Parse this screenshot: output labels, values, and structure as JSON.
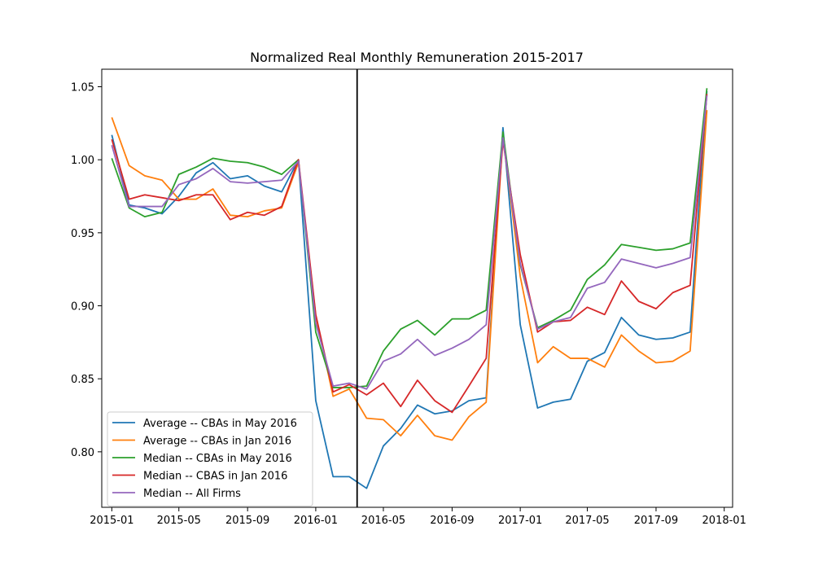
{
  "chart_data": {
    "type": "line",
    "title": "Normalized Real Monthly Remuneration 2015-2017",
    "xlabel": "",
    "ylabel": "",
    "x": [
      "2015-01",
      "2015-02",
      "2015-03",
      "2015-04",
      "2015-05",
      "2015-06",
      "2015-07",
      "2015-08",
      "2015-09",
      "2015-10",
      "2015-11",
      "2015-12",
      "2016-01",
      "2016-02",
      "2016-03",
      "2016-04",
      "2016-05",
      "2016-06",
      "2016-07",
      "2016-08",
      "2016-09",
      "2016-10",
      "2016-11",
      "2016-12",
      "2017-01",
      "2017-02",
      "2017-03",
      "2017-04",
      "2017-05",
      "2017-06",
      "2017-07",
      "2017-08",
      "2017-09",
      "2017-10",
      "2017-11",
      "2017-12"
    ],
    "xlim": [
      "2014-12-14",
      "2018-01-16"
    ],
    "ylim": [
      0.762,
      1.062
    ],
    "x_ticks": [
      "2015-01",
      "2015-05",
      "2015-09",
      "2016-01",
      "2016-05",
      "2016-09",
      "2017-01",
      "2017-05",
      "2017-09",
      "2018-01"
    ],
    "y_ticks": [
      0.8,
      0.85,
      0.9,
      0.95,
      1.0,
      1.05
    ],
    "y_tick_labels": [
      "0.80",
      "0.85",
      "0.90",
      "0.95",
      "1.00",
      "1.05"
    ],
    "grid": false,
    "legend_position": "lower-left",
    "vertical_line": {
      "x": "2016-03-15",
      "color": "#000000"
    },
    "series": [
      {
        "name": "Average -- CBAs in May 2016",
        "color": "#1f77b4",
        "values": [
          1.017,
          0.969,
          0.967,
          0.963,
          0.975,
          0.991,
          0.998,
          0.987,
          0.989,
          0.982,
          0.978,
          1.0,
          0.835,
          0.783,
          0.783,
          0.775,
          0.804,
          0.816,
          0.832,
          0.826,
          0.828,
          0.835,
          0.837,
          1.022,
          0.887,
          0.83,
          0.834,
          0.836,
          0.862,
          0.868,
          0.892,
          0.88,
          0.877,
          0.878,
          0.882,
          1.047
        ]
      },
      {
        "name": "Average -- CBAs in Jan 2016",
        "color": "#ff7f0e",
        "values": [
          1.029,
          0.996,
          0.989,
          0.986,
          0.973,
          0.973,
          0.98,
          0.962,
          0.961,
          0.965,
          0.967,
          0.998,
          0.893,
          0.838,
          0.843,
          0.823,
          0.822,
          0.811,
          0.825,
          0.811,
          0.808,
          0.824,
          0.834,
          1.017,
          0.92,
          0.861,
          0.872,
          0.864,
          0.864,
          0.858,
          0.88,
          0.869,
          0.861,
          0.862,
          0.869,
          1.034
        ]
      },
      {
        "name": "Median -- CBAs in May 2016",
        "color": "#2ca02c",
        "values": [
          1.001,
          0.967,
          0.961,
          0.964,
          0.99,
          0.995,
          1.001,
          0.999,
          0.998,
          0.995,
          0.99,
          1.0,
          0.882,
          0.844,
          0.844,
          0.845,
          0.869,
          0.884,
          0.89,
          0.88,
          0.891,
          0.891,
          0.897,
          1.019,
          0.928,
          0.885,
          0.89,
          0.897,
          0.918,
          0.928,
          0.942,
          0.94,
          0.938,
          0.939,
          0.943,
          1.049
        ]
      },
      {
        "name": "Median -- CBAS in Jan 2016",
        "color": "#d62728",
        "values": [
          1.014,
          0.973,
          0.976,
          0.974,
          0.972,
          0.976,
          0.976,
          0.959,
          0.964,
          0.962,
          0.968,
          1.0,
          0.894,
          0.841,
          0.846,
          0.839,
          0.847,
          0.831,
          0.849,
          0.835,
          0.827,
          0.845,
          0.864,
          1.013,
          0.935,
          0.882,
          0.889,
          0.89,
          0.899,
          0.894,
          0.917,
          0.903,
          0.898,
          0.909,
          0.914,
          1.045
        ]
      },
      {
        "name": "Median -- All Firms",
        "color": "#9467bd",
        "values": [
          1.01,
          0.968,
          0.968,
          0.968,
          0.983,
          0.987,
          0.994,
          0.985,
          0.984,
          0.985,
          0.986,
          0.999,
          0.888,
          0.845,
          0.847,
          0.843,
          0.862,
          0.867,
          0.877,
          0.866,
          0.871,
          0.877,
          0.887,
          1.015,
          0.929,
          0.884,
          0.889,
          0.892,
          0.912,
          0.916,
          0.932,
          0.929,
          0.926,
          0.929,
          0.933,
          1.044
        ]
      }
    ]
  }
}
